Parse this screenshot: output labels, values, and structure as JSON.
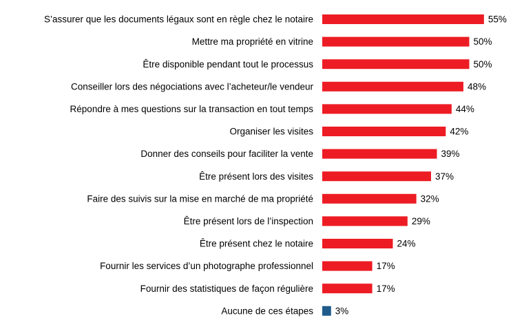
{
  "chart_data": {
    "type": "bar",
    "orientation": "horizontal",
    "categories": [
      "S’assurer que les documents légaux sont en règle chez le notaire",
      "Mettre ma propriété en vitrine",
      "Être disponible pendant tout le processus",
      "Conseiller lors des négociations avec l’acheteur/le vendeur",
      "Répondre à mes questions sur la transaction en tout temps",
      "Organiser les visites",
      "Donner des conseils pour faciliter la vente",
      "Être présent lors des visites",
      "Faire des suivis sur la mise en marché de ma propriété",
      "Être présent lors de l’inspection",
      "Être présent chez le notaire",
      "Fournir les services d’un photographe professionnel",
      "Fournir des statistiques de façon régulière",
      "Aucune de ces étapes"
    ],
    "values": [
      55,
      50,
      50,
      48,
      44,
      42,
      39,
      37,
      32,
      29,
      24,
      17,
      17,
      3
    ],
    "value_labels": [
      "55%",
      "50%",
      "50%",
      "48%",
      "44%",
      "42%",
      "39%",
      "37%",
      "32%",
      "29%",
      "24%",
      "17%",
      "17%",
      "3%"
    ],
    "colors": [
      "#ed1c24",
      "#ed1c24",
      "#ed1c24",
      "#ed1c24",
      "#ed1c24",
      "#ed1c24",
      "#ed1c24",
      "#ed1c24",
      "#ed1c24",
      "#ed1c24",
      "#ed1c24",
      "#ed1c24",
      "#ed1c24",
      "#1f5c8c"
    ]
  }
}
